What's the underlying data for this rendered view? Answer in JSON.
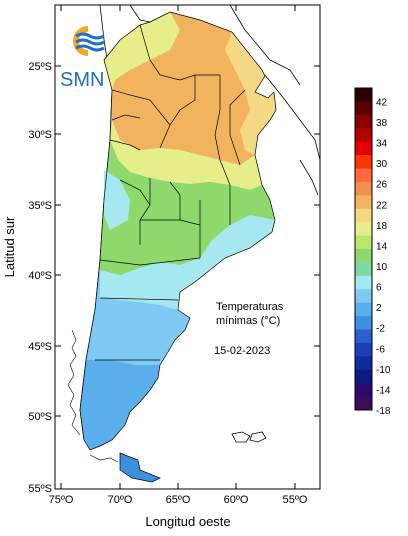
{
  "logo": {
    "text": "SMN"
  },
  "axes": {
    "y_title": "Latitud sur",
    "x_title": "Longitud oeste",
    "y_ticks": [
      "25ºS",
      "30ºS",
      "35ºS",
      "40ºS",
      "45ºS",
      "50ºS",
      "55ºS"
    ],
    "x_ticks": [
      "75ºO",
      "70ºO",
      "65ºO",
      "60ºO",
      "55ºO"
    ]
  },
  "annotation": {
    "line1": "Temperaturas",
    "line2": "mínimas (°C)",
    "date": "15-02-2023"
  },
  "legend": {
    "labels": [
      "42",
      "38",
      "34",
      "30",
      "26",
      "22",
      "18",
      "14",
      "10",
      "6",
      "2",
      "-2",
      "-6",
      "-10",
      "-14",
      "-18"
    ],
    "colors": [
      "#2b0000",
      "#5a0000",
      "#8b0000",
      "#b30000",
      "#e60000",
      "#ff3300",
      "#ff6a3d",
      "#f28f4d",
      "#f2b35e",
      "#f5d886",
      "#e6ee8a",
      "#b8e86a",
      "#8fd86c",
      "#7fd8a8",
      "#a6e8f0",
      "#7fcaf2",
      "#5aaeec",
      "#3d8fe0",
      "#2a5fd0",
      "#1a3fb8",
      "#122aa0",
      "#0b1a80",
      "#2a0a70",
      "#3e0a5a"
    ]
  },
  "map": {
    "regions": [
      {
        "name": "northeast-warm",
        "color": "#f2b35e"
      },
      {
        "name": "northwest-temperate",
        "color": "#f5d886"
      },
      {
        "name": "central-warm",
        "color": "#e6ee8a"
      },
      {
        "name": "pampas-green",
        "color": "#8fd86c"
      },
      {
        "name": "buenos-aires-coast",
        "color": "#a6e8f0"
      },
      {
        "name": "patagonia-north",
        "color": "#7fcaf2"
      },
      {
        "name": "patagonia-south",
        "color": "#5aaeec"
      },
      {
        "name": "tierra-del-fuego",
        "color": "#3d8fe0"
      }
    ]
  }
}
